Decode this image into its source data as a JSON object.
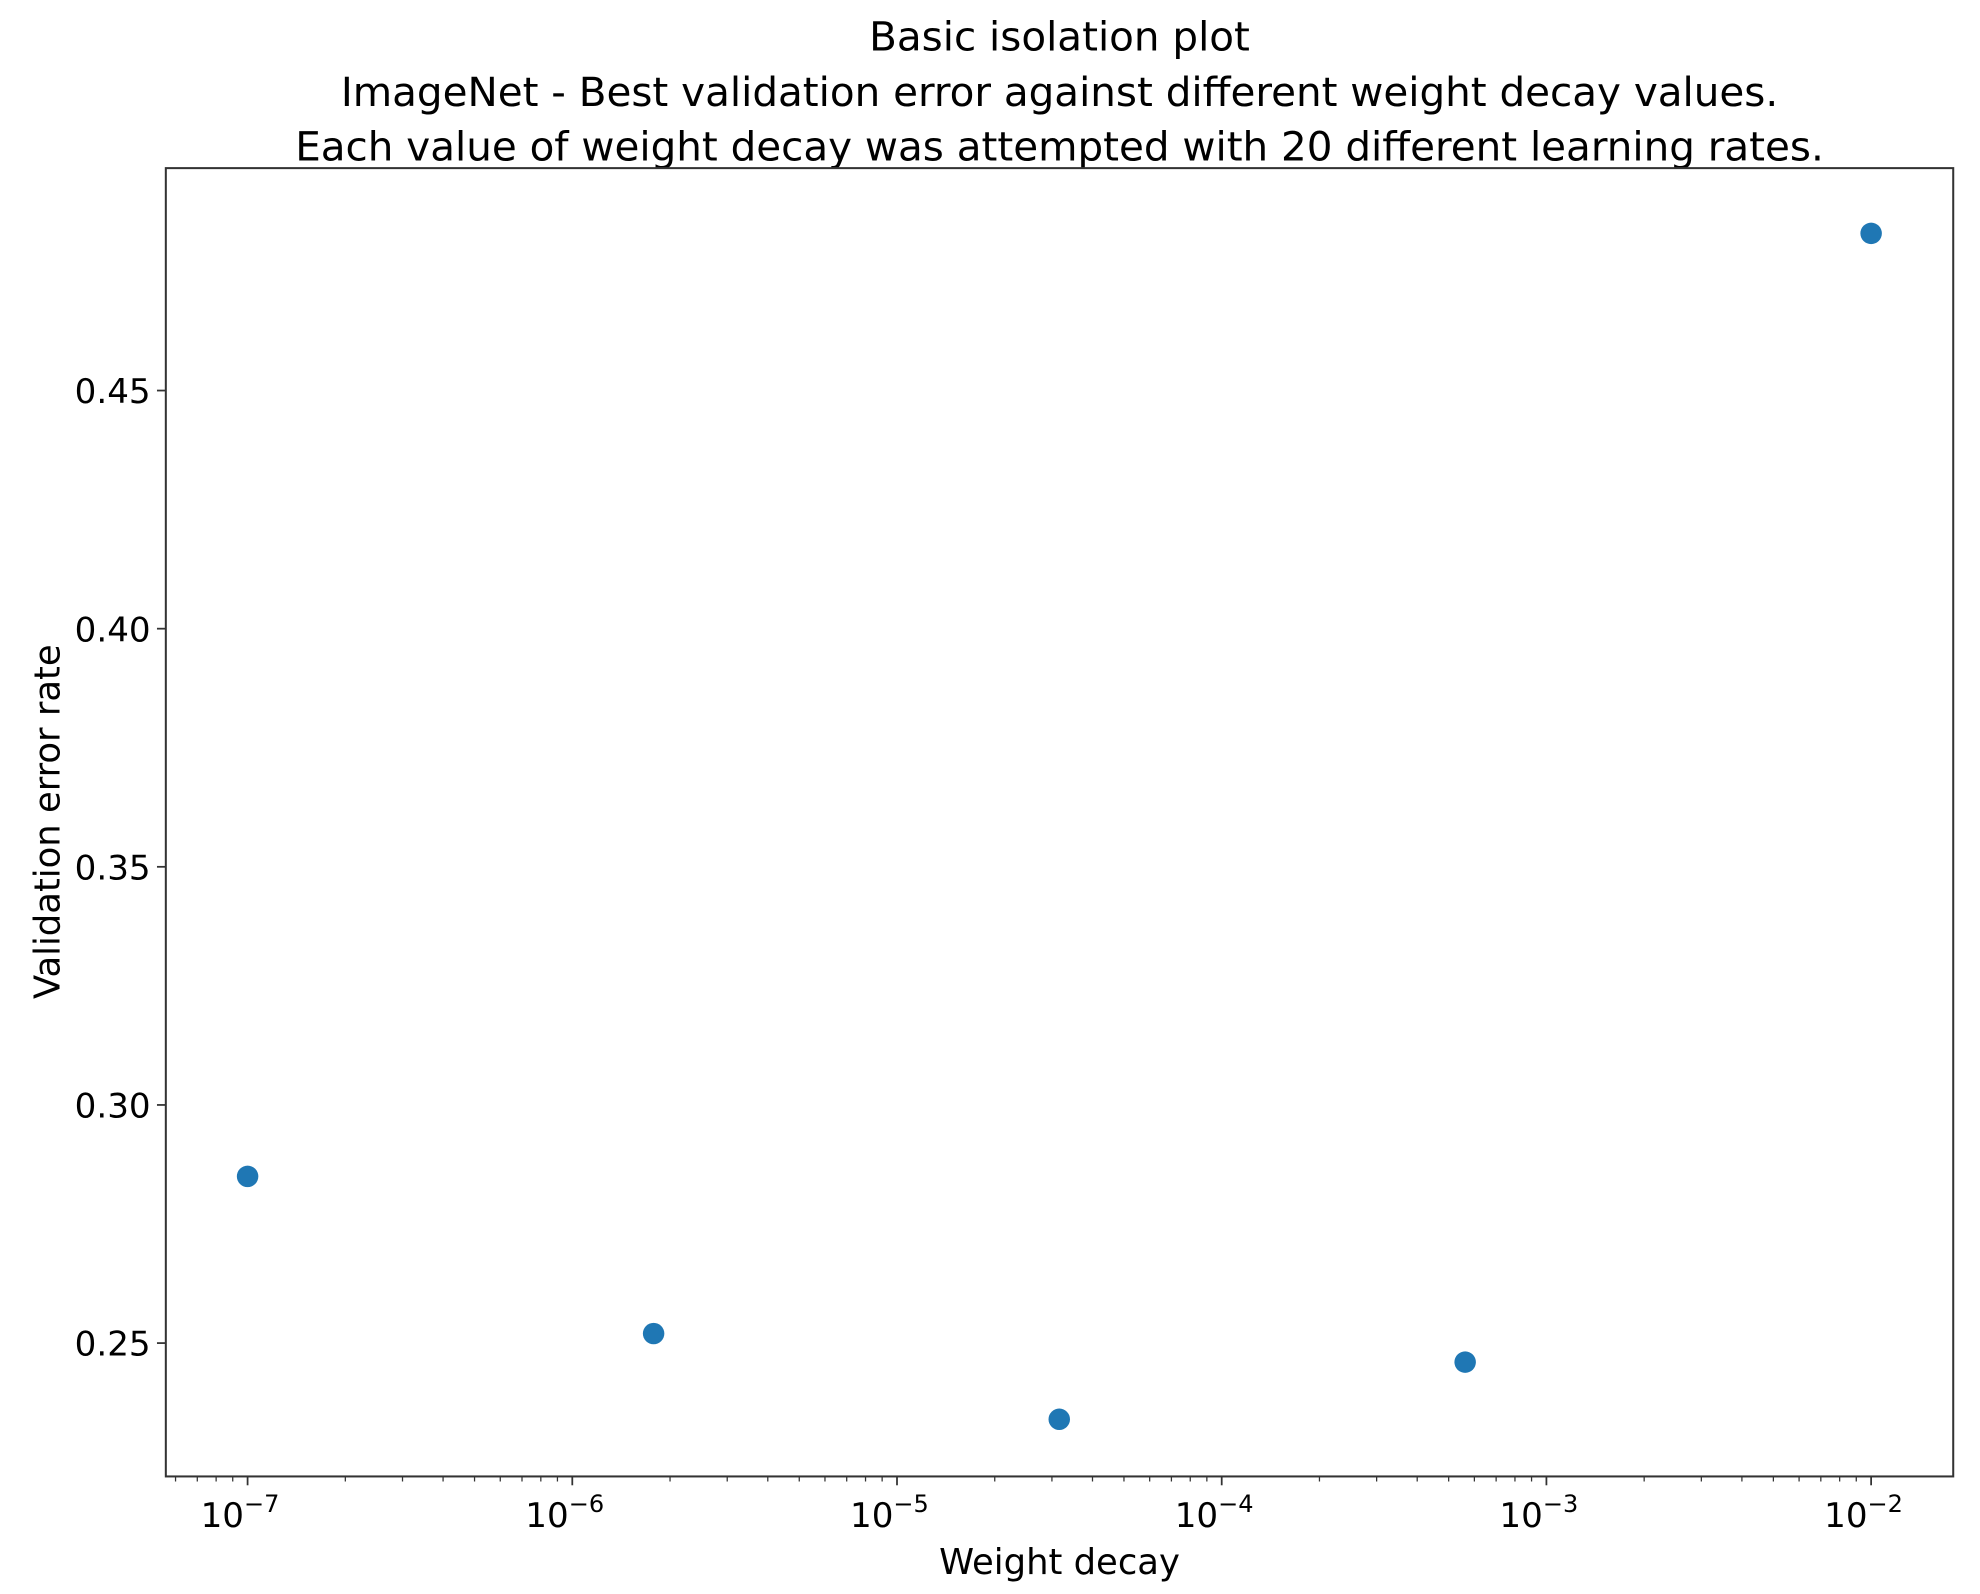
{
  "chart_data": {
    "type": "scatter",
    "title": "Basic isolation plot",
    "subtitle_lines": [
      "ImageNet - Best validation error against different weight decay values.",
      "Each value of weight decay was attempted with 20 different learning rates."
    ],
    "xlabel": "Weight decay",
    "ylabel": "Validation error rate",
    "xscale": "log",
    "xlim": [
      5.6e-08,
      0.0179
    ],
    "ylim": [
      0.222,
      0.4967
    ],
    "x_ticks": [
      {
        "value": 1e-07,
        "base": "10",
        "exp": "−7"
      },
      {
        "value": 1e-06,
        "base": "10",
        "exp": "−6"
      },
      {
        "value": 1e-05,
        "base": "10",
        "exp": "−5"
      },
      {
        "value": 0.0001,
        "base": "10",
        "exp": "−4"
      },
      {
        "value": 0.001,
        "base": "10",
        "exp": "−3"
      },
      {
        "value": 0.01,
        "base": "10",
        "exp": "−2"
      }
    ],
    "y_ticks": [
      0.25,
      0.3,
      0.35,
      0.4,
      0.45
    ],
    "y_tick_labels": [
      "0.25",
      "0.30",
      "0.35",
      "0.40",
      "0.45"
    ],
    "grid": false,
    "legend": "none",
    "marker_color": "#1f77b4",
    "points": [
      {
        "x": 1e-07,
        "y": 0.285
      },
      {
        "x": 1.78e-06,
        "y": 0.252
      },
      {
        "x": 3.16e-05,
        "y": 0.234
      },
      {
        "x": 0.000562,
        "y": 0.246
      },
      {
        "x": 0.01,
        "y": 0.483
      }
    ]
  }
}
